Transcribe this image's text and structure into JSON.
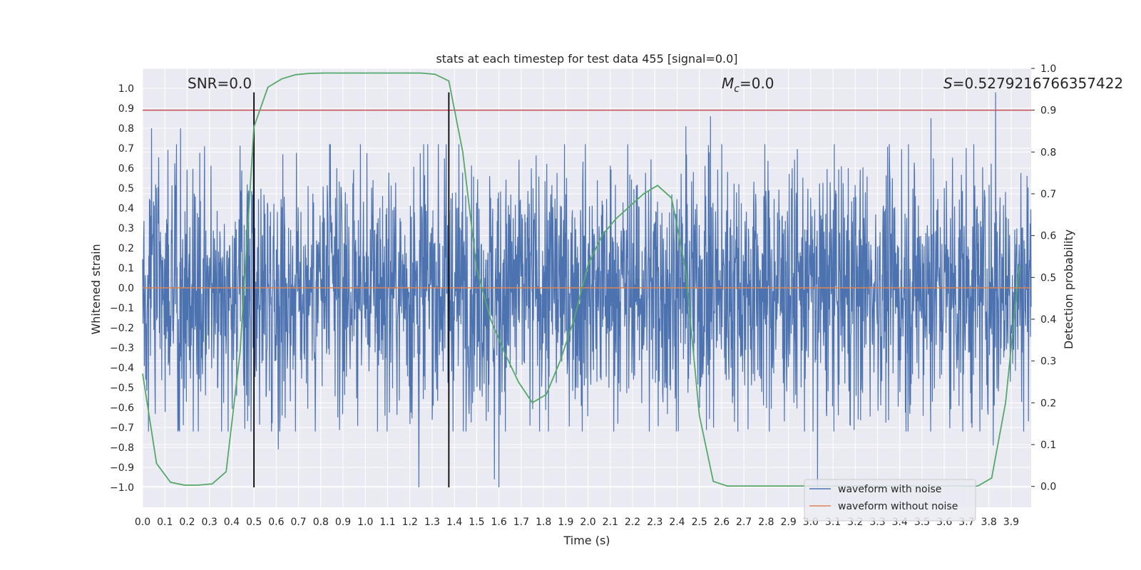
{
  "chart_data": {
    "type": "line",
    "title": "stats at each timestep for test data 455 [signal=0.0]",
    "xlabel": "Time (s)",
    "ylabel": "Whitened strain",
    "y2label": "Detection probability",
    "xlim": [
      0.0,
      3.99
    ],
    "ylim": [
      -1.1,
      1.1
    ],
    "y2lim": [
      -0.05,
      1.0
    ],
    "xticks": [
      "0.0",
      "0.1",
      "0.2",
      "0.3",
      "0.4",
      "0.5",
      "0.6",
      "0.7",
      "0.8",
      "0.9",
      "1.0",
      "1.1",
      "1.2",
      "1.3",
      "1.4",
      "1.5",
      "1.6",
      "1.7",
      "1.8",
      "1.9",
      "2.0",
      "2.1",
      "2.2",
      "2.3",
      "2.4",
      "2.5",
      "2.6",
      "2.7",
      "2.8",
      "2.9",
      "3.0",
      "3.1",
      "3.2",
      "3.3",
      "3.4",
      "3.5",
      "3.6",
      "3.7",
      "3.8",
      "3.9"
    ],
    "yticks": [
      "1.0",
      "0.9",
      "0.8",
      "0.7",
      "0.6",
      "0.5",
      "0.4",
      "0.3",
      "0.2",
      "0.1",
      "0.0",
      "−0.1",
      "−0.2",
      "−0.3",
      "−0.4",
      "−0.5",
      "−0.6",
      "−0.7",
      "−0.8",
      "−0.9",
      "−1.0"
    ],
    "y2ticks": [
      "1.0",
      "0.9",
      "0.8",
      "0.7",
      "0.6",
      "0.5",
      "0.4",
      "0.3",
      "0.2",
      "0.1",
      "0.0"
    ],
    "annotations": {
      "snr": "SNR=0.0",
      "mc_symbol": "M",
      "mc_sub": "c",
      "mc_value": "=0.0",
      "s_symbol": "S",
      "s_value": "=0.5279216766357422"
    },
    "legend": {
      "position": "lower-right",
      "entries": [
        "waveform with noise",
        "waveform without noise"
      ]
    },
    "threshold_y2": 0.9,
    "vlines_x": [
      0.5,
      1.375
    ],
    "vline_ylim": [
      -1.0,
      0.98
    ],
    "noise_series": {
      "name": "waveform with noise",
      "color": "#4c72b0",
      "note": "dense whitened-noise trace, values between -1.0 and 0.98",
      "peaks": [
        {
          "x": 0.04,
          "y": 0.8
        },
        {
          "x": 0.17,
          "y": 0.8
        },
        {
          "x": 1.24,
          "y": -1.0
        },
        {
          "x": 1.6,
          "y": -1.0
        },
        {
          "x": 2.55,
          "y": 0.86
        },
        {
          "x": 2.44,
          "y": 0.81
        },
        {
          "x": 3.03,
          "y": -1.0
        },
        {
          "x": 3.54,
          "y": 0.85
        },
        {
          "x": 3.83,
          "y": 0.98
        },
        {
          "x": 3.82,
          "y": -0.79
        },
        {
          "x": 0.61,
          "y": -0.81
        },
        {
          "x": 1.58,
          "y": -0.96
        }
      ]
    },
    "clean_series": {
      "name": "waveform without noise",
      "color": "#dd8452",
      "x": [
        0.0,
        3.99
      ],
      "y": [
        0.0,
        0.0
      ]
    },
    "probability_series": {
      "name": "detection probability",
      "color": "#55a868",
      "x": [
        0.0,
        0.0625,
        0.125,
        0.1875,
        0.25,
        0.3125,
        0.375,
        0.4375,
        0.5,
        0.5625,
        0.625,
        0.6875,
        0.75,
        0.8125,
        0.875,
        0.9375,
        1.0,
        1.0625,
        1.125,
        1.1875,
        1.25,
        1.3125,
        1.375,
        1.4375,
        1.5,
        1.5625,
        1.625,
        1.6875,
        1.75,
        1.8125,
        1.875,
        1.9375,
        2.0,
        2.0625,
        2.125,
        2.1875,
        2.25,
        2.3125,
        2.375,
        2.4375,
        2.5,
        2.5625,
        2.625,
        2.6875,
        2.75,
        2.8125,
        2.875,
        2.9375,
        3.0,
        3.0625,
        3.125,
        3.1875,
        3.25,
        3.3125,
        3.375,
        3.4375,
        3.5,
        3.5625,
        3.625,
        3.6875,
        3.75,
        3.8125,
        3.875,
        3.9375
      ],
      "y": [
        0.27,
        0.055,
        0.01,
        0.003,
        0.003,
        0.006,
        0.035,
        0.32,
        0.86,
        0.955,
        0.975,
        0.985,
        0.988,
        0.989,
        0.989,
        0.989,
        0.989,
        0.989,
        0.989,
        0.989,
        0.989,
        0.986,
        0.97,
        0.8,
        0.52,
        0.4,
        0.32,
        0.25,
        0.2,
        0.22,
        0.3,
        0.4,
        0.53,
        0.6,
        0.64,
        0.67,
        0.7,
        0.72,
        0.69,
        0.52,
        0.17,
        0.012,
        0.001,
        0.001,
        0.001,
        0.001,
        0.001,
        0.001,
        0.001,
        0.001,
        0.001,
        0.001,
        0.001,
        0.001,
        0.001,
        0.001,
        0.001,
        0.001,
        0.001,
        0.001,
        0.001,
        0.02,
        0.2,
        0.53
      ]
    }
  },
  "colors": {
    "background": "#eaeaf2",
    "grid": "#ffffff",
    "noise": "#4c72b0",
    "clean": "#dd8452",
    "probability": "#55a868",
    "threshold": "#c44e52",
    "vline": "#000000"
  }
}
